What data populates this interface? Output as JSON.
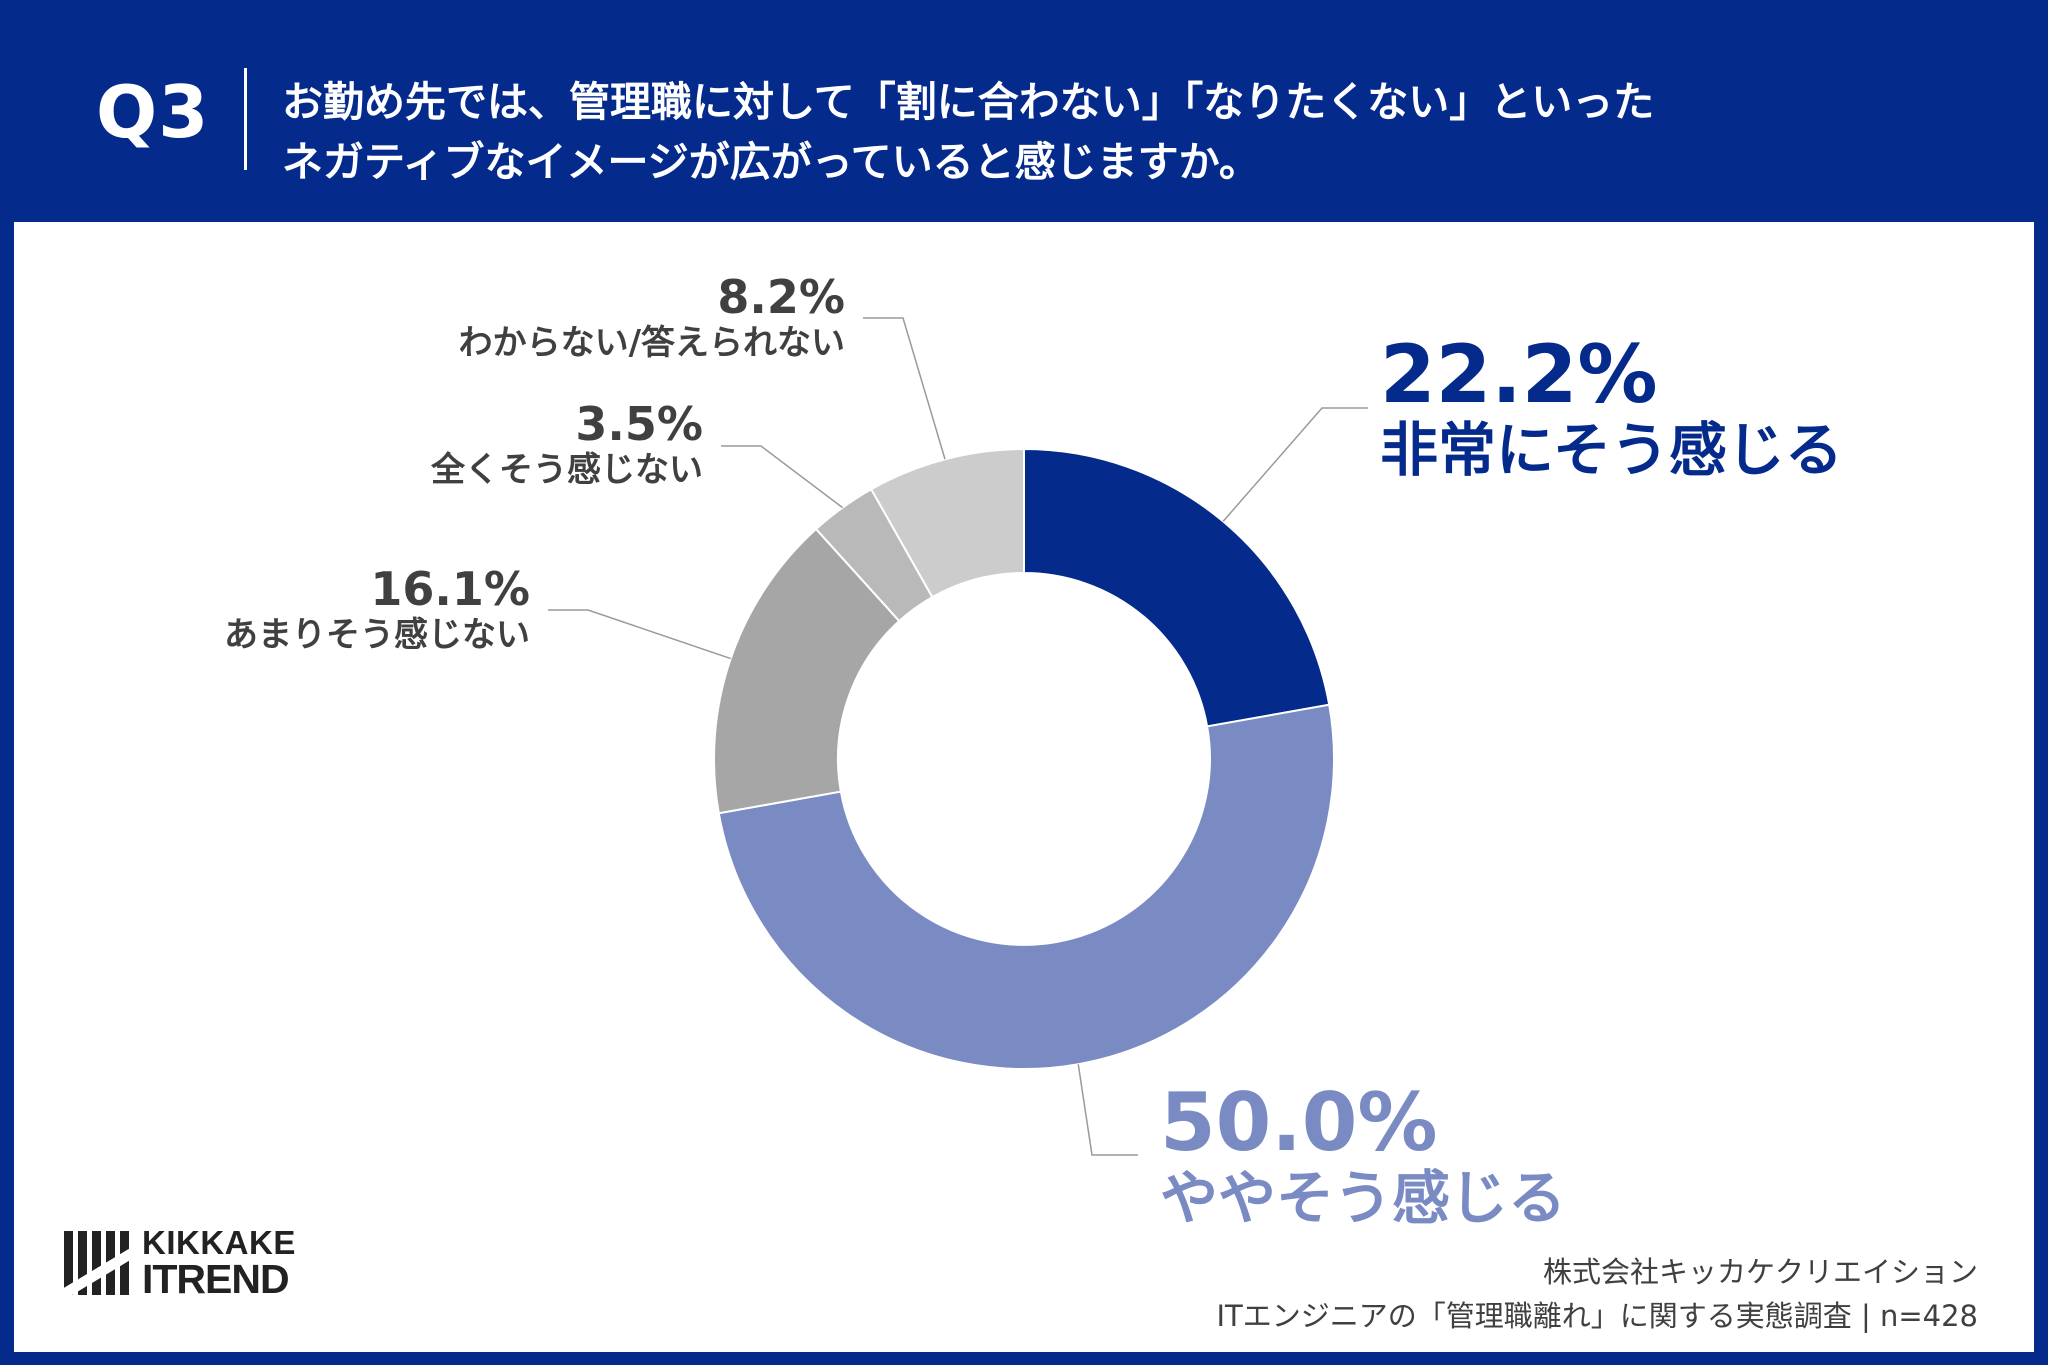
{
  "header": {
    "q_label": "Q3",
    "question_line1": "お勤め先では、管理職に対して「割に合わない」「なりたくない」といった",
    "question_line2": "ネガティブなイメージが広がっていると感じますか。"
  },
  "colors": {
    "background": "#042a8b",
    "accent_dark": "#042a8b",
    "accent_light": "#7a8bc3"
  },
  "chart_data": {
    "type": "pie",
    "variant": "donut",
    "slices": [
      {
        "label": "非常にそう感じる",
        "value": 22.2,
        "value_label": "22.2%",
        "color": "#042a8b"
      },
      {
        "label": "ややそう感じる",
        "value": 50.0,
        "value_label": "50.0%",
        "color": "#7a8bc3"
      },
      {
        "label": "あまりそう感じない",
        "value": 16.1,
        "value_label": "16.1%",
        "color": "#a6a6a6"
      },
      {
        "label": "全くそう感じない",
        "value": 3.5,
        "value_label": "3.5%",
        "color": "#b9b9b9"
      },
      {
        "label": "わからない/答えられない",
        "value": 8.2,
        "value_label": "8.2%",
        "color": "#cccccc"
      }
    ],
    "start": "top",
    "direction": "clockwise"
  },
  "logo": {
    "line1": "KIKKAKE",
    "line2": "ITREND"
  },
  "footer": {
    "company": "株式会社キッカケクリエイション",
    "survey": "ITエンジニアの「管理職離れ」に関する実態調査 | n=428"
  }
}
